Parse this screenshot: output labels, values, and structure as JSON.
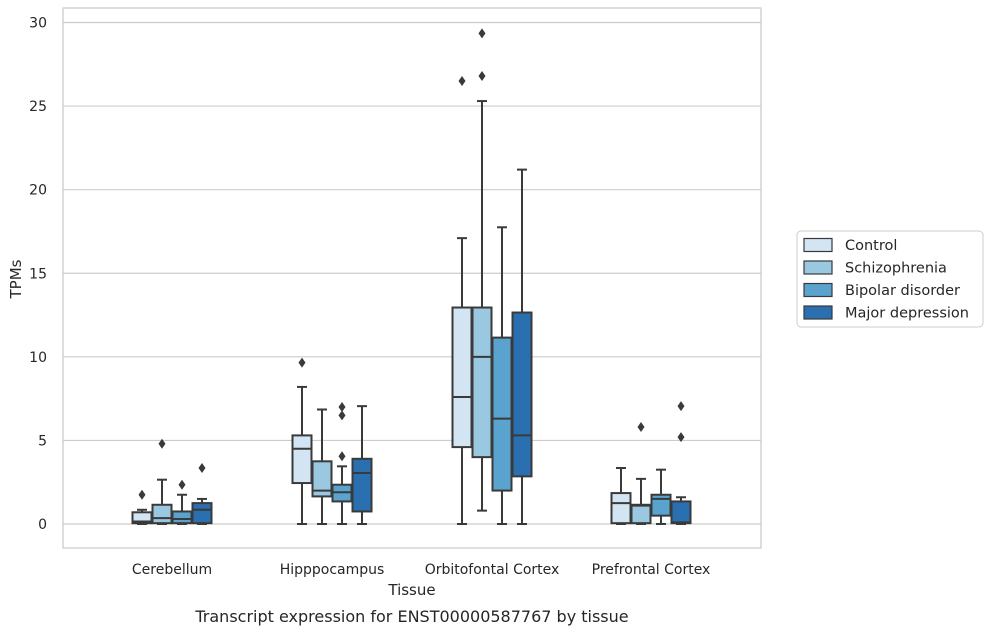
{
  "chart_data": {
    "type": "box",
    "caption": "Transcript expression for ENST00000587767 by tissue",
    "xlabel": "Tissue",
    "ylabel": "TPMs",
    "ylim": [
      -1.4,
      30.8
    ],
    "yticks": [
      0,
      5,
      10,
      15,
      20,
      25,
      30
    ],
    "grid": true,
    "legend_position": "right",
    "categories": [
      "Cerebellum",
      "Hipppocampus",
      "Orbitofontal Cortex",
      "Prefrontal Cortex"
    ],
    "series": [
      {
        "name": "Control",
        "color": "#d3e4f3",
        "boxes": [
          {
            "whisker_low": 0,
            "q1": 0.05,
            "median": 0.15,
            "q3": 0.7,
            "whisker_high": 0.85,
            "outliers": [
              1.75
            ]
          },
          {
            "whisker_low": 0,
            "q1": 2.45,
            "median": 4.5,
            "q3": 5.3,
            "whisker_high": 8.2,
            "outliers": [
              9.65
            ]
          },
          {
            "whisker_low": 0,
            "q1": 4.6,
            "median": 7.6,
            "q3": 12.95,
            "whisker_high": 17.1,
            "outliers": [
              26.5
            ]
          },
          {
            "whisker_low": 0,
            "q1": 0.05,
            "median": 1.25,
            "q3": 1.85,
            "whisker_high": 3.35,
            "outliers": []
          }
        ]
      },
      {
        "name": "Schizophrenia",
        "color": "#9ac8e0",
        "boxes": [
          {
            "whisker_low": 0,
            "q1": 0.05,
            "median": 0.35,
            "q3": 1.15,
            "whisker_high": 2.65,
            "outliers": [
              4.8
            ]
          },
          {
            "whisker_low": 0,
            "q1": 1.65,
            "median": 2.0,
            "q3": 3.75,
            "whisker_high": 6.85,
            "outliers": []
          },
          {
            "whisker_low": 0.8,
            "q1": 4.0,
            "median": 10.0,
            "q3": 12.95,
            "whisker_high": 25.3,
            "outliers": [
              26.8,
              29.35
            ]
          },
          {
            "whisker_low": 0,
            "q1": 0.05,
            "median": 1.1,
            "q3": 1.15,
            "whisker_high": 2.7,
            "outliers": [
              5.8
            ]
          }
        ]
      },
      {
        "name": "Bipolar disorder",
        "color": "#5ba3cf",
        "boxes": [
          {
            "whisker_low": 0,
            "q1": 0.05,
            "median": 0.3,
            "q3": 0.75,
            "whisker_high": 1.75,
            "outliers": [
              2.35
            ]
          },
          {
            "whisker_low": 0,
            "q1": 1.35,
            "median": 1.9,
            "q3": 2.35,
            "whisker_high": 3.45,
            "outliers": [
              4.05,
              6.5,
              7.0
            ]
          },
          {
            "whisker_low": 0,
            "q1": 2.0,
            "median": 6.3,
            "q3": 11.15,
            "whisker_high": 17.75,
            "outliers": []
          },
          {
            "whisker_low": 0,
            "q1": 0.5,
            "median": 1.5,
            "q3": 1.75,
            "whisker_high": 3.25,
            "outliers": []
          }
        ]
      },
      {
        "name": "Major depression",
        "color": "#2a6fb0",
        "boxes": [
          {
            "whisker_low": 0,
            "q1": 0.05,
            "median": 0.85,
            "q3": 1.25,
            "whisker_high": 1.5,
            "outliers": [
              3.35
            ]
          },
          {
            "whisker_low": 0,
            "q1": 0.75,
            "median": 3.05,
            "q3": 3.9,
            "whisker_high": 7.05,
            "outliers": []
          },
          {
            "whisker_low": 0,
            "q1": 2.85,
            "median": 5.3,
            "q3": 12.65,
            "whisker_high": 21.2,
            "outliers": []
          },
          {
            "whisker_low": 0,
            "q1": 0.05,
            "median": 0.1,
            "q3": 1.35,
            "whisker_high": 1.6,
            "outliers": [
              5.2,
              7.05
            ]
          }
        ]
      }
    ]
  }
}
